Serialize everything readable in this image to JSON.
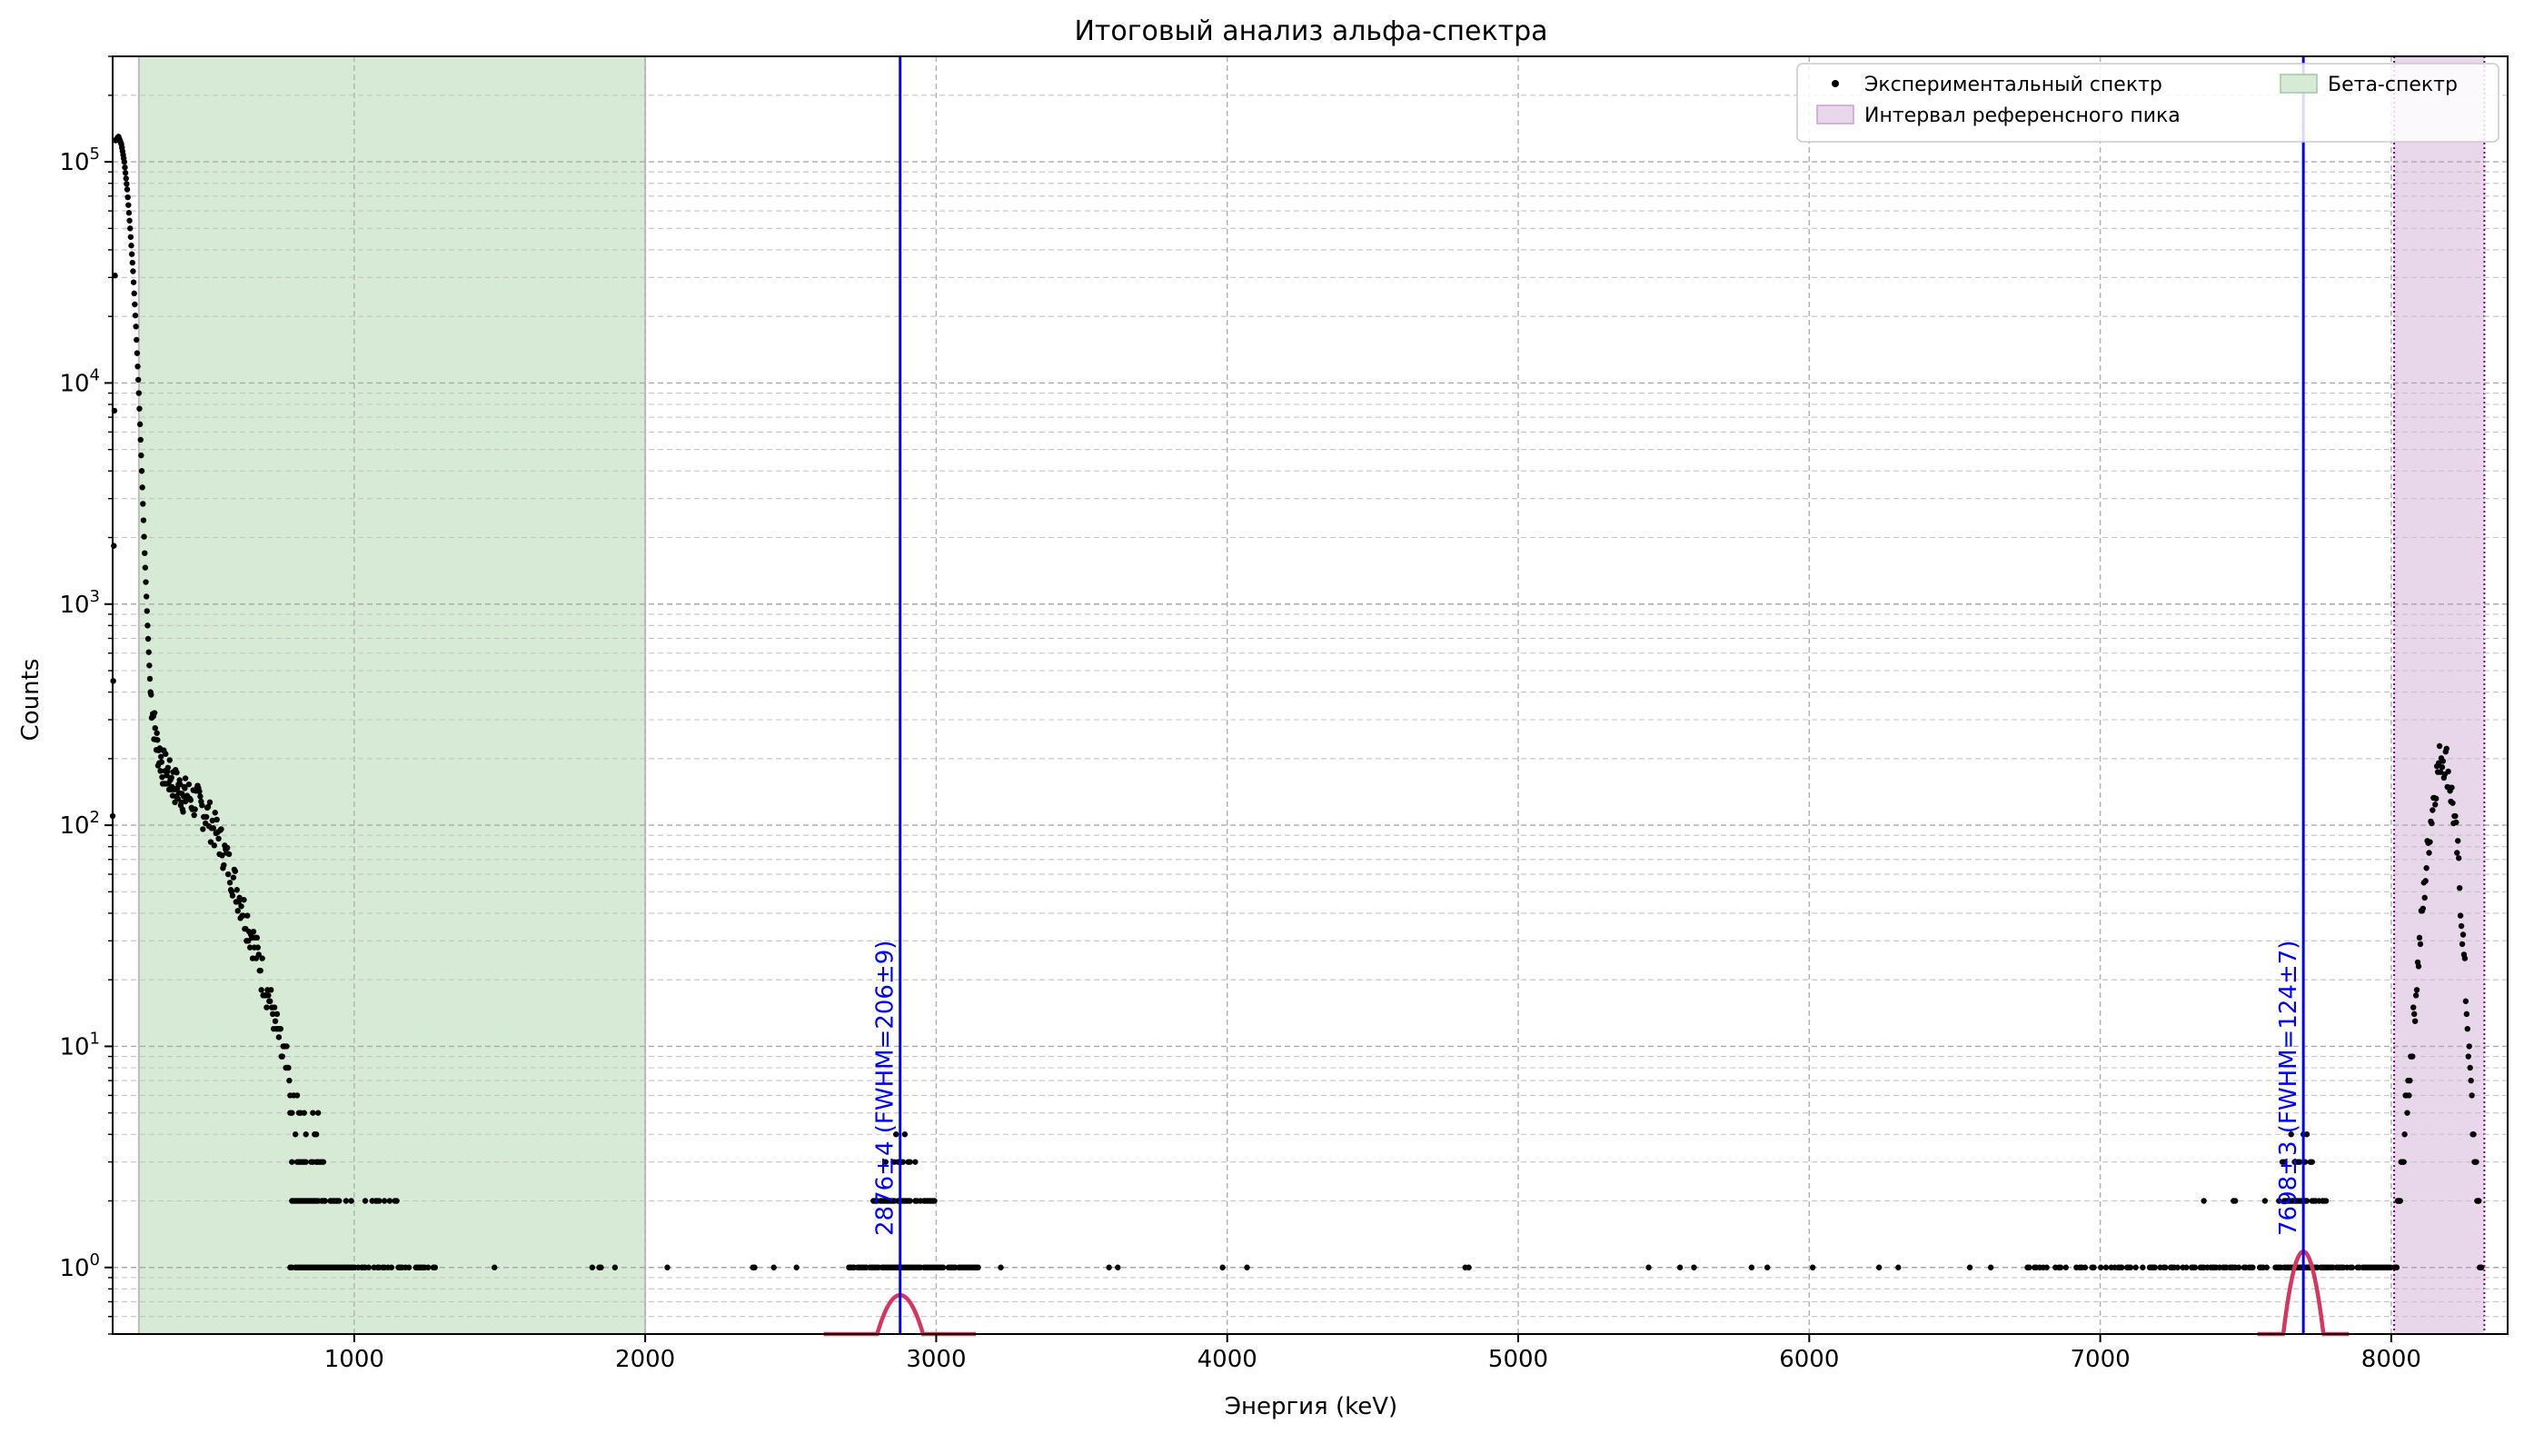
{
  "chart_data": {
    "type": "scatter",
    "title": "Итоговый анализ альфа-спектра",
    "xlabel": "Энергия (keV)",
    "ylabel": "Counts",
    "xlim": [
      170,
      8400
    ],
    "ylim": [
      0.5,
      300000
    ],
    "yscale": "log",
    "grid": true,
    "legend_position": "top-right",
    "x_ticks": [
      1000,
      2000,
      3000,
      4000,
      5000,
      6000,
      7000,
      8000
    ],
    "y_ticks": [
      {
        "value": 1,
        "label": "10^0"
      },
      {
        "value": 10,
        "label": "10^1"
      },
      {
        "value": 100,
        "label": "10^2"
      },
      {
        "value": 1000,
        "label": "10^3"
      },
      {
        "value": 10000,
        "label": "10^4"
      },
      {
        "value": 100000,
        "label": "10^5"
      }
    ],
    "legend": [
      {
        "label": "Экспериментальный спектр",
        "kind": "marker",
        "color": "#000000"
      },
      {
        "label": "Бета-спектр",
        "kind": "patch",
        "color": "#d6ead6",
        "edge": "#9ec99e"
      },
      {
        "label": "Интервал референсного пика",
        "kind": "patch",
        "color": "#e8d6ea",
        "edge": "#c9a0cf"
      }
    ],
    "spans": [
      {
        "name": "Бета-спектр",
        "x0": 260,
        "x1": 2000,
        "color": "#d6ead6",
        "edge": "#bcbcbc"
      },
      {
        "name": "Интервал референсного пика",
        "x0": 8010,
        "x1": 8320,
        "color": "#e8d6ea",
        "edge": "#800080"
      }
    ],
    "peaks": [
      {
        "label": "2876±4 (FWHM=206±9)",
        "center": 2876,
        "fwhm": 206,
        "amplitude": 0.75,
        "color": "#0000ff"
      },
      {
        "label": "7698±3 (FWHM=124±7)",
        "center": 7698,
        "fwhm": 124,
        "amplitude": 1.18,
        "color": "#0000ff"
      }
    ],
    "fit_color": "#d6355f",
    "series": [
      {
        "name": "Экспериментальный спектр",
        "color": "#000000",
        "segments": [
          {
            "x": [
              170,
              180,
              190,
              200,
              210,
              220,
              230,
              240,
              250,
              260,
              270,
              280,
              290,
              300,
              320,
              340,
              360,
              380,
              400,
              420
            ],
            "y": [
              110,
              125000,
              130000,
              120000,
              100000,
              75000,
              50000,
              32000,
              18000,
              9000,
              4000,
              1700,
              800,
              400,
              240,
              190,
              170,
              155,
              145,
              138
            ]
          },
          {
            "x": [
              420,
              460,
              500,
              540,
              580,
              620,
              660,
              700,
              740,
              780
            ],
            "y": [
              138,
              128,
              110,
              85,
              60,
              42,
              28,
              18,
              11,
              7
            ]
          },
          {
            "x": [
              8010,
              8030,
              8050,
              8070,
              8090,
              8110,
              8130,
              8150,
              8170,
              8190,
              8210,
              8230,
              8250,
              8270,
              8290,
              8310
            ],
            "y": [
              1,
              2,
              5,
              10,
              22,
              45,
              90,
              150,
              210,
              195,
              130,
              70,
              25,
              8,
              3,
              1
            ]
          }
        ]
      }
    ]
  }
}
